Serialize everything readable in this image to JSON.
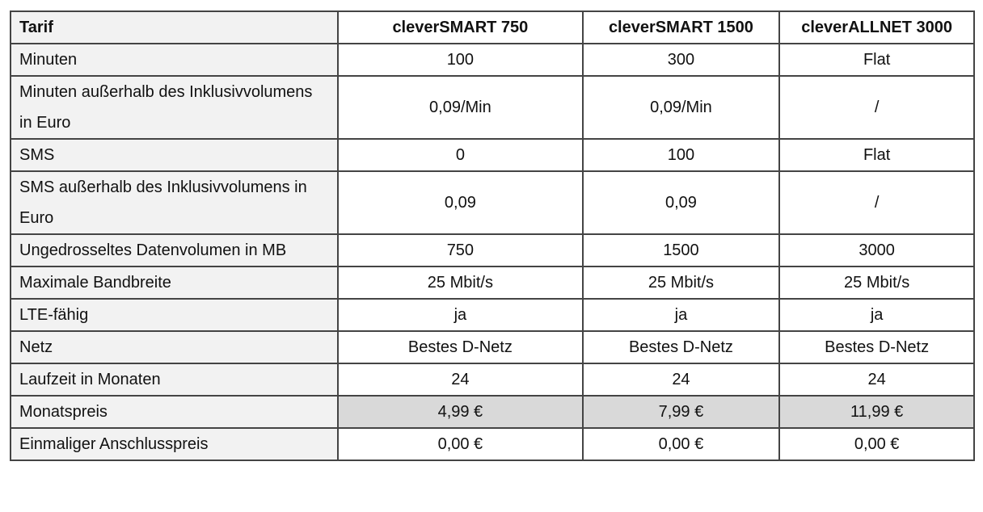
{
  "table": {
    "headers": [
      "Tarif",
      "cleverSMART 750",
      "cleverSMART 1500",
      "cleverALLNET 3000"
    ],
    "rows": [
      {
        "label": "Minuten",
        "values": [
          "100",
          "300",
          "Flat"
        ]
      },
      {
        "label": "Minuten außerhalb des Inklusivvolumens in Euro",
        "values": [
          "0,09/Min",
          "0,09/Min",
          "/"
        ]
      },
      {
        "label": "SMS",
        "values": [
          "0",
          "100",
          "Flat"
        ]
      },
      {
        "label": "SMS außerhalb des Inklusivvolumens in Euro",
        "values": [
          "0,09",
          "0,09",
          "/"
        ]
      },
      {
        "label": "Ungedrosseltes Datenvolumen in MB",
        "values": [
          "750",
          "1500",
          "3000"
        ]
      },
      {
        "label": "Maximale Bandbreite",
        "values": [
          "25 Mbit/s",
          "25 Mbit/s",
          "25 Mbit/s"
        ]
      },
      {
        "label": "LTE-fähig",
        "values": [
          "ja",
          "ja",
          "ja"
        ]
      },
      {
        "label": "Netz",
        "values": [
          "Bestes D-Netz",
          "Bestes D-Netz",
          "Bestes D-Netz"
        ]
      },
      {
        "label": "Laufzeit in Monaten",
        "values": [
          "24",
          "24",
          "24"
        ]
      },
      {
        "label": "Monatspreis",
        "values": [
          "4,99 €",
          "7,99 €",
          "11,99 €"
        ],
        "highlight": true
      },
      {
        "label": "Einmaliger Anschlusspreis",
        "values": [
          "0,00 €",
          "0,00 €",
          "0,00 €"
        ]
      }
    ]
  },
  "colors": {
    "label_bg": "#f2f2f2",
    "highlight_bg": "#d9d9d9",
    "border": "#444444"
  }
}
